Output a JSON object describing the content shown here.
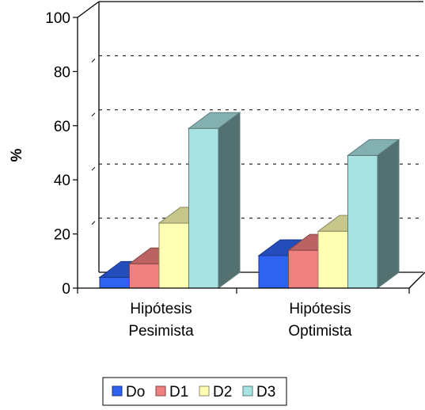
{
  "chart_data": {
    "type": "bar",
    "categories": [
      [
        "Hipótesis",
        "Pesimista"
      ],
      [
        "Hipótesis",
        "Optimista"
      ]
    ],
    "series": [
      {
        "name": "Do",
        "values": [
          4,
          12
        ],
        "color": "#2f62f0"
      },
      {
        "name": "D1",
        "values": [
          9,
          14
        ],
        "color": "#f07f7f"
      },
      {
        "name": "D2",
        "values": [
          24,
          21
        ],
        "color": "#ffffb4"
      },
      {
        "name": "D3",
        "values": [
          59,
          49
        ],
        "color": "#a8e2e2"
      }
    ],
    "ylabel": "%",
    "xlabel": "",
    "ylim": [
      0,
      100
    ],
    "yticks": [
      "0",
      "20",
      "40",
      "60",
      "80",
      "100"
    ],
    "grid": true,
    "legend_position": "bottom",
    "style": "3d"
  }
}
